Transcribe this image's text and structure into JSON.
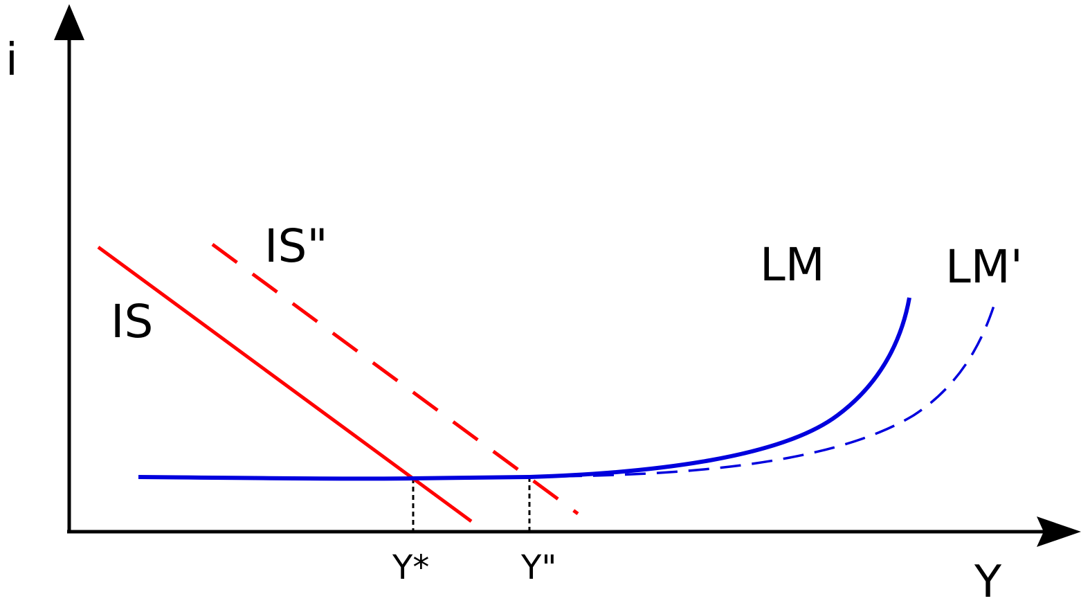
{
  "axes": {
    "y_label": "i",
    "x_label": "Y"
  },
  "curves": {
    "is": {
      "label": "IS",
      "color": "#ff0000",
      "style": "solid"
    },
    "is_shifted": {
      "label": "IS\"",
      "color": "#ff0000",
      "style": "dashed"
    },
    "lm": {
      "label": "LM",
      "color": "#0000dd",
      "style": "solid"
    },
    "lm_shifted": {
      "label": "LM'",
      "color": "#0000dd",
      "style": "dashed"
    }
  },
  "equilibria": {
    "initial": {
      "label": "Y*"
    },
    "shifted": {
      "label": "Y\""
    }
  },
  "colors": {
    "axis": "#000000",
    "guide": "#000000"
  }
}
